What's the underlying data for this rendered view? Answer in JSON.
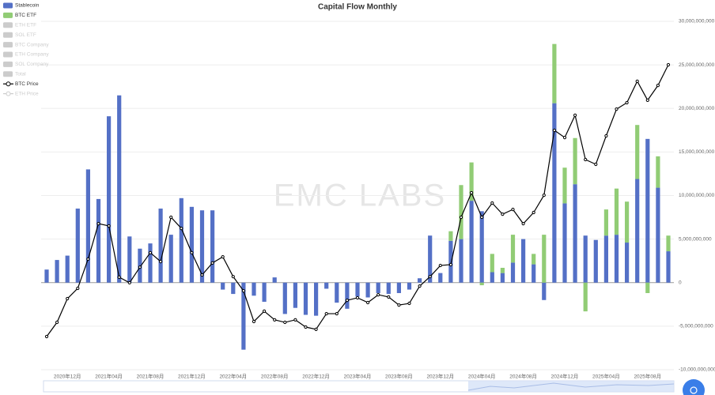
{
  "chart_data": {
    "type": "bar-line",
    "title": "Capital Flow Monthly",
    "watermark": "EMC LABS",
    "categories": [
      null,
      null,
      "2020年12月",
      null,
      null,
      null,
      "2021年04月",
      null,
      null,
      null,
      "2021年08月",
      null,
      null,
      null,
      "2021年12月",
      null,
      null,
      null,
      "2022年04月",
      null,
      null,
      null,
      "2022年08月",
      null,
      null,
      null,
      "2022年12月",
      null,
      null,
      null,
      "2023年04月",
      null,
      null,
      null,
      "2023年08月",
      null,
      null,
      null,
      "2023年12月",
      null,
      null,
      null,
      "2024年04月",
      null,
      null,
      null,
      "2024年08月",
      null,
      null,
      null,
      "2024年12月",
      null,
      null,
      null,
      "2025年04月",
      null,
      null,
      null,
      "2025年08月",
      null,
      null
    ],
    "series": [
      {
        "name": "Stablecoin",
        "kind": "bar",
        "color": "#5470c6",
        "values": [
          1500000000.0,
          2600000000.0,
          3100000000.0,
          8500000000.0,
          13000000000.0,
          9600000000.0,
          19100000000.0,
          21500000000.0,
          5300000000.0,
          3900000000.0,
          4500000000.0,
          8500000000.0,
          5500000000.0,
          9700000000.0,
          8700000000.0,
          8300000000.0,
          8300000000.0,
          -800000000.0,
          -1300000000.0,
          -7700000000.0,
          -1500000000.0,
          -2200000000.0,
          600000000.0,
          -3600000000.0,
          -2900000000.0,
          -3700000000.0,
          -3800000000.0,
          -700000000.0,
          -2300000000.0,
          -3000000000.0,
          -1600000000.0,
          -1700000000.0,
          -1200000000.0,
          -1300000000.0,
          -1200000000.0,
          -800000000.0,
          500000000.0,
          5400000000.0,
          1100000000.0,
          4800000000.0,
          5000000000.0,
          9400000000.0,
          8200000000.0,
          1200000000.0,
          1100000000.0,
          2300000000.0,
          5000000000.0,
          2100000000.0,
          -2000000000.0,
          20600000000.0,
          9100000000.0,
          11300000000.0,
          5400000000.0,
          4900000000.0,
          5400000000.0,
          5500000000.0,
          4600000000.0,
          11900000000.0,
          16500000000.0,
          10900000000.0,
          3600000000.0
        ]
      },
      {
        "name": "BTC ETF",
        "kind": "bar",
        "color": "#91cc75",
        "values": [
          null,
          null,
          null,
          null,
          null,
          null,
          null,
          null,
          null,
          null,
          null,
          null,
          null,
          null,
          null,
          null,
          null,
          null,
          null,
          null,
          null,
          null,
          null,
          null,
          null,
          null,
          null,
          null,
          null,
          null,
          null,
          null,
          null,
          null,
          null,
          null,
          null,
          null,
          null,
          1100000000.0,
          6200000000.0,
          4400000000.0,
          -300000000.0,
          2100000000.0,
          600000000.0,
          3200000000.0,
          0,
          1200000000.0,
          5500000000.0,
          6800000000.0,
          4100000000.0,
          5300000000.0,
          -3300000000.0,
          0,
          3000000000.0,
          5300000000.0,
          4700000000.0,
          6200000000.0,
          -1200000000.0,
          3600000000.0,
          1800000000.0
        ]
      },
      {
        "name": "BTC Price",
        "kind": "line",
        "axis": "y2",
        "color": "#000000",
        "values": [
          11900,
          17000,
          25500,
          29200,
          39700,
          52400,
          51600,
          33200,
          31200,
          36800,
          42000,
          38800,
          54700,
          50700,
          42000,
          34000,
          38300,
          40500,
          33400,
          28300,
          17300,
          21000,
          17900,
          17000,
          17900,
          15300,
          14500,
          20100,
          20100,
          24900,
          25800,
          24100,
          26900,
          26100,
          23200,
          23800,
          30000,
          33400,
          37400,
          37700,
          54700,
          63500,
          54700,
          59800,
          55800,
          57500,
          52400,
          56400,
          62600,
          85900,
          83300,
          91300,
          75400,
          73700,
          83900,
          93500,
          95800,
          103500,
          96700,
          102000,
          109400
        ]
      }
    ],
    "inactive_legend": [
      {
        "name": "ETH ETF",
        "kind": "bar"
      },
      {
        "name": "SOL ETF",
        "kind": "bar"
      },
      {
        "name": "BTC Company",
        "kind": "bar"
      },
      {
        "name": "ETH Company",
        "kind": "bar"
      },
      {
        "name": "SOL Company",
        "kind": "bar"
      },
      {
        "name": "Total",
        "kind": "bar"
      },
      {
        "name": "ETH Price",
        "kind": "line"
      }
    ],
    "ylim": [
      -10000000000,
      30000000000
    ],
    "yticks": [
      {
        "value": -10000000000,
        "label": "-10,000,000,000"
      },
      {
        "value": -5000000000,
        "label": "-5,000,000,000"
      },
      0,
      {
        "value": 5000000000,
        "label": "5,000,000,000"
      },
      {
        "value": 10000000000,
        "label": "10,000,000,000"
      },
      {
        "value": 15000000000,
        "label": "15,000,000,000"
      },
      {
        "value": 20000000000,
        "label": "20,000,000,000"
      },
      {
        "value": 25000000000,
        "label": "25,000,000,000"
      },
      {
        "value": 30000000000,
        "label": "30,000,000,000"
      }
    ],
    "y2lim": [
      0,
      125000
    ],
    "grid": true,
    "legend_position": "top-left"
  }
}
